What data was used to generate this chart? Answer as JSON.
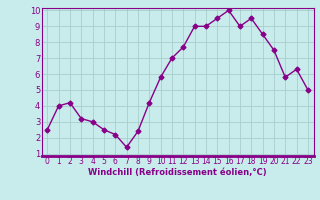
{
  "x": [
    0,
    1,
    2,
    3,
    4,
    5,
    6,
    7,
    8,
    9,
    10,
    11,
    12,
    13,
    14,
    15,
    16,
    17,
    18,
    19,
    20,
    21,
    22,
    23
  ],
  "y": [
    2.5,
    4.0,
    4.2,
    3.2,
    3.0,
    2.5,
    2.2,
    1.4,
    2.4,
    4.2,
    5.8,
    7.0,
    7.7,
    9.0,
    9.0,
    9.5,
    10.0,
    9.0,
    9.5,
    8.5,
    7.5,
    5.8,
    6.3,
    5.0
  ],
  "line_color": "#880088",
  "marker": "D",
  "marker_size": 2.5,
  "bg_color": "#c8ecec",
  "grid_color": "#aacccc",
  "xlabel": "Windchill (Refroidissement éolien,°C)",
  "xlabel_color": "#880088",
  "tick_color": "#880088",
  "ylim": [
    1,
    10
  ],
  "xlim": [
    -0.5,
    23.5
  ],
  "yticks": [
    1,
    2,
    3,
    4,
    5,
    6,
    7,
    8,
    9,
    10
  ],
  "xticks": [
    0,
    1,
    2,
    3,
    4,
    5,
    6,
    7,
    8,
    9,
    10,
    11,
    12,
    13,
    14,
    15,
    16,
    17,
    18,
    19,
    20,
    21,
    22,
    23
  ],
  "line_width": 1.0,
  "tick_fontsize": 5.5,
  "xlabel_fontsize": 6.0
}
